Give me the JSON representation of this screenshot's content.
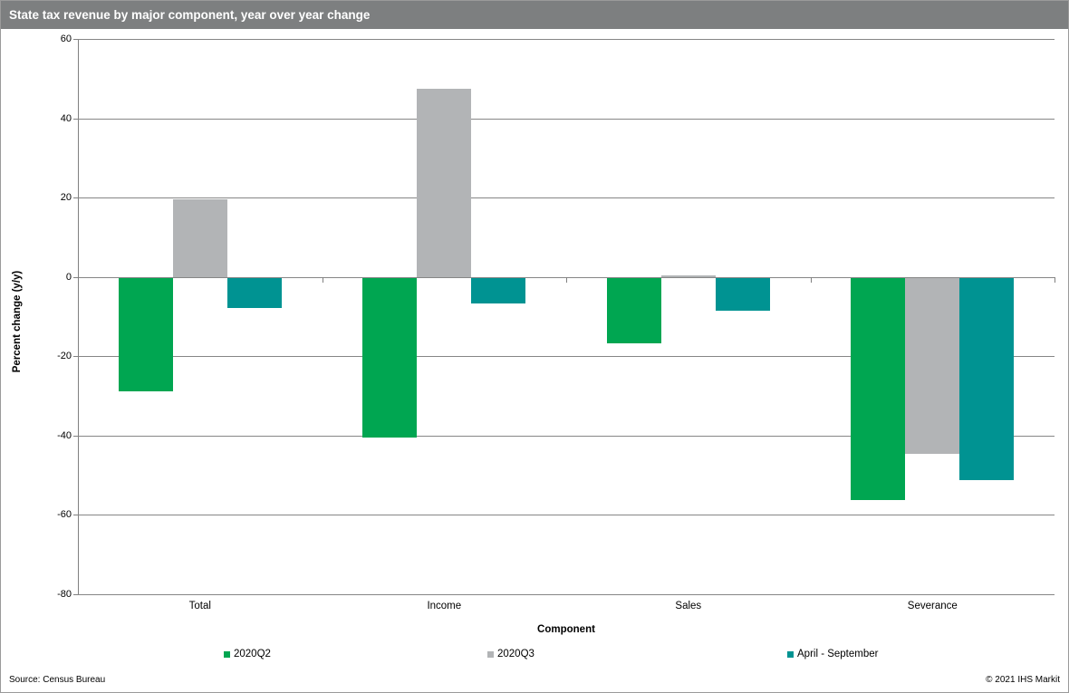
{
  "title": "State tax revenue by major component, year over year change",
  "chart_data": {
    "type": "bar",
    "categories": [
      "Total",
      "Income",
      "Sales",
      "Severance"
    ],
    "series": [
      {
        "name": "2020Q2",
        "color": "#00a651",
        "values": [
          -28.6,
          -40.3,
          -16.5,
          -56.1
        ]
      },
      {
        "name": "2020Q3",
        "color": "#b2b4b6",
        "values": [
          19.6,
          47.5,
          0.5,
          -44.3
        ]
      },
      {
        "name": "April - September",
        "color": "#009392",
        "values": [
          -7.6,
          -6.5,
          -8.2,
          -50.9
        ]
      }
    ],
    "xlabel": "Component",
    "ylabel": "Percent change (y/y)",
    "ylim": [
      -80,
      60
    ],
    "yticks": [
      60,
      40,
      20,
      0,
      -20,
      -40,
      -60,
      -80
    ],
    "grid": true,
    "legend_position": "bottom"
  },
  "footer": {
    "source": "Source:  Census Bureau",
    "copyright": "© 2021  IHS Markit"
  },
  "colors": {
    "titlebar_bg": "#7d7f80",
    "grid": "#868686",
    "axis": "#808080"
  }
}
